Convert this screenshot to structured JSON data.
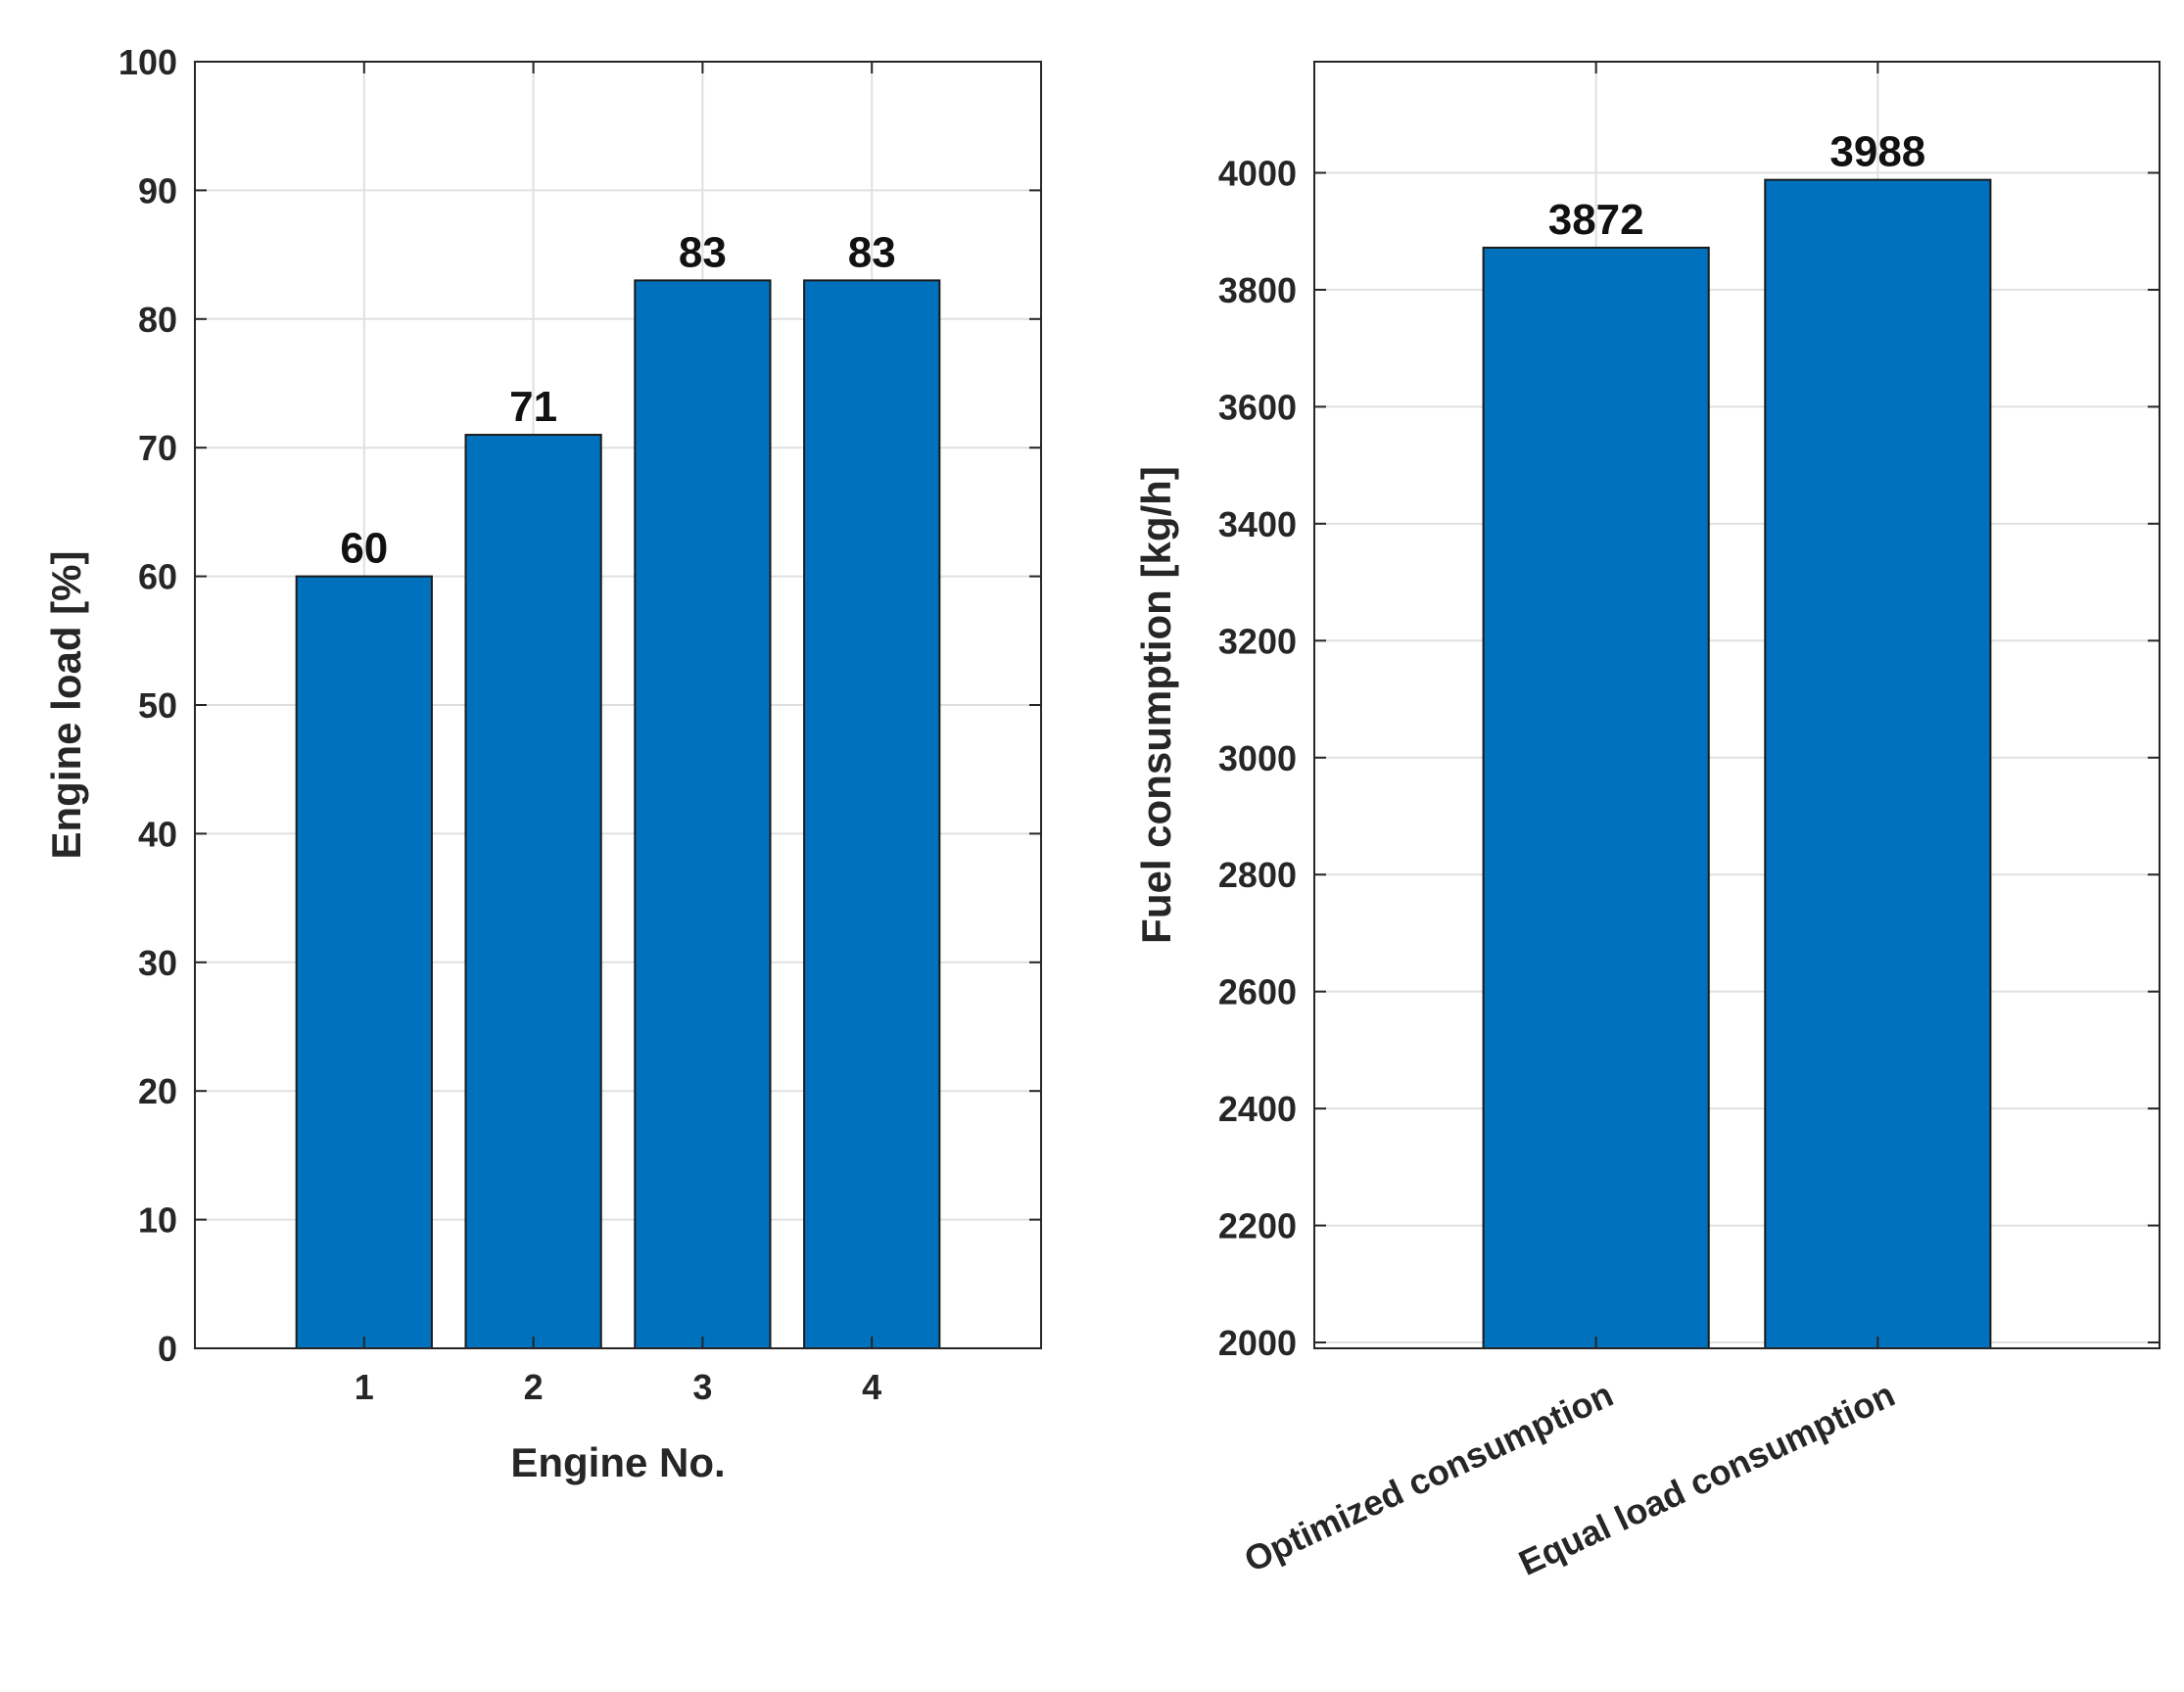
{
  "chart_data": [
    {
      "type": "bar",
      "categories": [
        "1",
        "2",
        "3",
        "4"
      ],
      "values": [
        60,
        71,
        83,
        83
      ],
      "data_labels": [
        "60",
        "71",
        "83",
        "83"
      ],
      "xlabel": "Engine No.",
      "ylabel": "Engine load [%]",
      "xlim": [
        0,
        5
      ],
      "ylim": [
        0,
        100
      ],
      "yticks": [
        0,
        10,
        20,
        30,
        40,
        50,
        60,
        70,
        80,
        90,
        100
      ],
      "grid": true,
      "colors": {
        "bar": "#0072BD",
        "edge": "#1a1a1a",
        "grid": "#e0e0e0",
        "axis": "#262626"
      }
    },
    {
      "type": "bar",
      "categories": [
        "Optimized consumption",
        "Equal load consumption"
      ],
      "values": [
        3872,
        3988
      ],
      "data_labels": [
        "3872",
        "3988"
      ],
      "xlabel": "",
      "ylabel": "Fuel consumption [kg/h]",
      "xlim": [
        0,
        3
      ],
      "ylim": [
        1990,
        4190
      ],
      "yticks": [
        2000,
        2200,
        2400,
        2600,
        2800,
        3000,
        3200,
        3400,
        3600,
        3800,
        4000
      ],
      "grid": true,
      "colors": {
        "bar": "#0072BD",
        "edge": "#1a1a1a",
        "grid": "#e0e0e0",
        "axis": "#262626"
      }
    }
  ]
}
